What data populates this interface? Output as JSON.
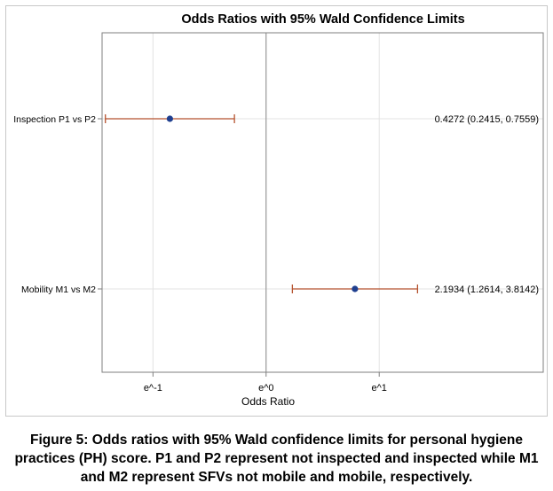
{
  "chart_data": {
    "type": "forest",
    "title": "Odds Ratios with 95% Wald Confidence Limits",
    "xlabel": "Odds Ratio",
    "x_scale": "log",
    "xlim": [
      -1.45,
      2.45
    ],
    "x_ticks": [
      {
        "value": -1,
        "label": "e^-1"
      },
      {
        "value": 0,
        "label": "e^0"
      },
      {
        "value": 1,
        "label": "e^1"
      }
    ],
    "reference_line": 1,
    "grid": true,
    "rows": [
      {
        "label": "Inspection P1 vs P2",
        "estimate": 0.4272,
        "lower": 0.2415,
        "upper": 0.7559,
        "annotation": "0.4272 (0.2415, 0.7559)"
      },
      {
        "label": "Mobility M1 vs M2",
        "estimate": 2.1934,
        "lower": 1.2614,
        "upper": 3.8142,
        "annotation": "2.1934 (1.2614, 3.8142)"
      }
    ],
    "colors": {
      "marker": "#1f3f8f",
      "ci_line": "#b5522e",
      "grid": "#e3e3e3",
      "frame": "#7f7f7f",
      "reference": "#8c8c8c"
    }
  },
  "caption": "Figure 5: Odds ratios with 95% Wald confidence limits for personal hygiene practices (PH) score. P1 and P2 represent not inspected and inspected while M1 and M2 represent SFVs not mobile and mobile, respectively."
}
